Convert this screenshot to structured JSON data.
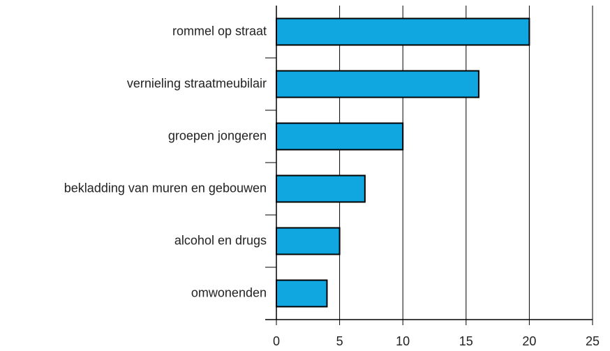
{
  "chart_data": {
    "type": "barh",
    "categories": [
      "rommel op straat",
      "vernieling straatmeubilair",
      "groepen jongeren",
      "bekladding van muren en gebouwen",
      "alcohol en drugs",
      "omwonenden"
    ],
    "values": [
      20,
      16,
      10,
      7,
      5,
      4
    ],
    "color": "#10a6e0",
    "xlim": [
      0,
      25
    ],
    "xticks": [
      0,
      5,
      10,
      15,
      20,
      25
    ],
    "grid": true
  }
}
